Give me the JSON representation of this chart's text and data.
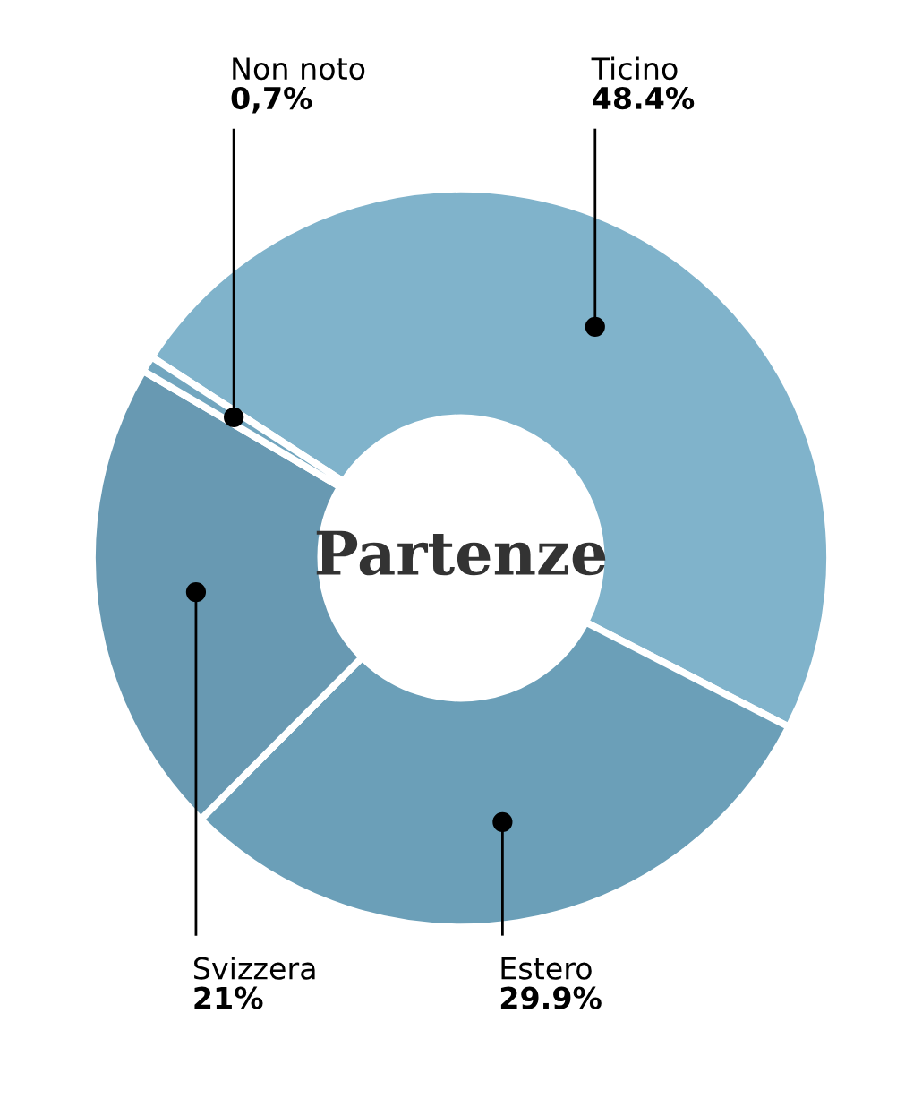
{
  "chart_data": {
    "type": "donut",
    "title": "Partenze",
    "categories": [
      "Ticino",
      "Estero",
      "Svizzera",
      "Non noto"
    ],
    "values": [
      48.4,
      29.9,
      21,
      0.7
    ],
    "value_labels": [
      "48.4%",
      "29.9%",
      "21%",
      "0,7%"
    ],
    "colors": [
      "#80b3cb",
      "#6b9fb8",
      "#6899b2",
      "#72a6bf"
    ],
    "legend": false
  }
}
